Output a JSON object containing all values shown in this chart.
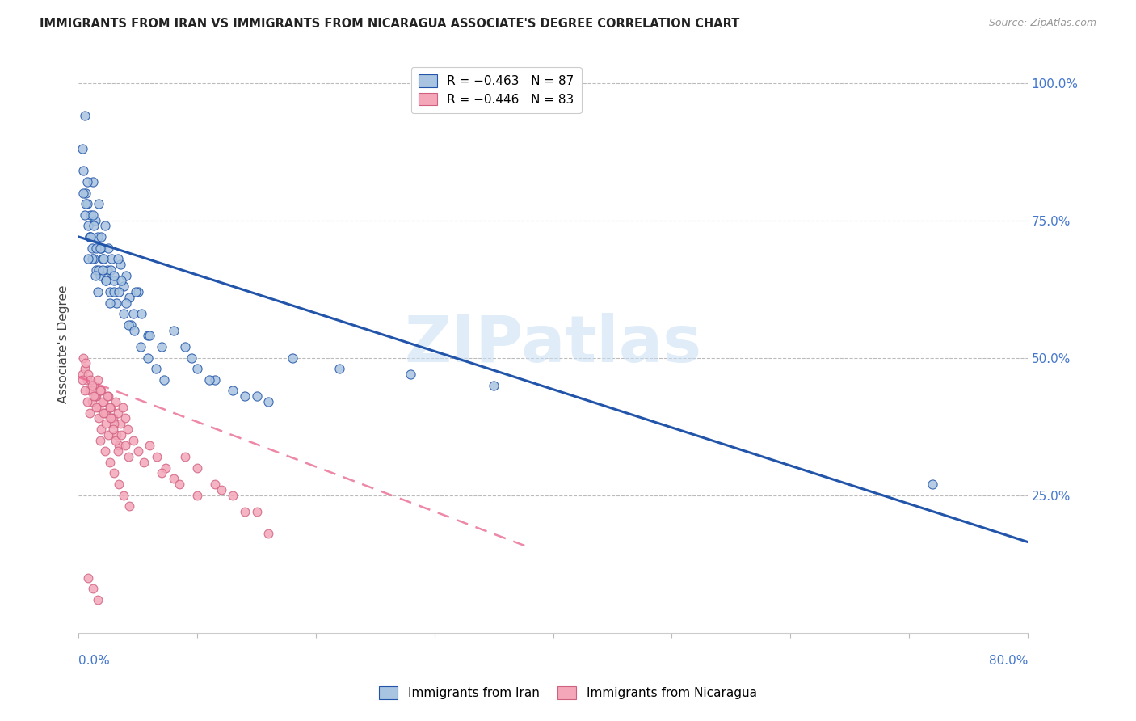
{
  "title": "IMMIGRANTS FROM IRAN VS IMMIGRANTS FROM NICARAGUA ASSOCIATE'S DEGREE CORRELATION CHART",
  "source": "Source: ZipAtlas.com",
  "ylabel": "Associate's Degree",
  "ytick_labels": [
    "100.0%",
    "75.0%",
    "50.0%",
    "25.0%"
  ],
  "ytick_values": [
    1.0,
    0.75,
    0.5,
    0.25
  ],
  "xlim": [
    0.0,
    0.8
  ],
  "ylim": [
    0.0,
    1.05
  ],
  "iran_color": "#a8c4e0",
  "nicaragua_color": "#f4a7b9",
  "iran_line_color": "#2255aa",
  "nicaragua_line_color": "#e8608a",
  "watermark_text": "ZIPatlas",
  "iran_R": "-0.463",
  "iran_N": "87",
  "nicaragua_R": "-0.446",
  "nicaragua_N": "83",
  "iran_line_x0": 0.0,
  "iran_line_x1": 0.8,
  "iran_line_y0": 0.72,
  "iran_line_y1": 0.165,
  "nicaragua_line_x0": 0.0,
  "nicaragua_line_x1": 0.38,
  "nicaragua_line_y0": 0.465,
  "nicaragua_line_y1": 0.155,
  "iran_scatter_x": [
    0.003,
    0.004,
    0.005,
    0.006,
    0.007,
    0.008,
    0.009,
    0.01,
    0.011,
    0.012,
    0.013,
    0.014,
    0.015,
    0.016,
    0.017,
    0.018,
    0.019,
    0.02,
    0.022,
    0.024,
    0.026,
    0.028,
    0.03,
    0.032,
    0.035,
    0.038,
    0.04,
    0.043,
    0.046,
    0.05,
    0.005,
    0.007,
    0.009,
    0.011,
    0.013,
    0.015,
    0.017,
    0.019,
    0.021,
    0.023,
    0.025,
    0.027,
    0.03,
    0.033,
    0.036,
    0.04,
    0.044,
    0.048,
    0.053,
    0.058,
    0.004,
    0.006,
    0.008,
    0.01,
    0.012,
    0.014,
    0.016,
    0.018,
    0.02,
    0.023,
    0.026,
    0.03,
    0.034,
    0.038,
    0.042,
    0.047,
    0.052,
    0.058,
    0.065,
    0.072,
    0.08,
    0.09,
    0.1,
    0.115,
    0.13,
    0.15,
    0.18,
    0.22,
    0.28,
    0.72,
    0.35,
    0.06,
    0.07,
    0.095,
    0.11,
    0.14,
    0.16
  ],
  "iran_scatter_y": [
    0.88,
    0.84,
    0.94,
    0.8,
    0.78,
    0.74,
    0.72,
    0.76,
    0.7,
    0.82,
    0.68,
    0.75,
    0.66,
    0.72,
    0.78,
    0.65,
    0.7,
    0.68,
    0.74,
    0.66,
    0.62,
    0.68,
    0.64,
    0.6,
    0.67,
    0.63,
    0.65,
    0.61,
    0.58,
    0.62,
    0.76,
    0.82,
    0.72,
    0.68,
    0.74,
    0.7,
    0.66,
    0.72,
    0.68,
    0.64,
    0.7,
    0.66,
    0.62,
    0.68,
    0.64,
    0.6,
    0.56,
    0.62,
    0.58,
    0.54,
    0.8,
    0.78,
    0.68,
    0.72,
    0.76,
    0.65,
    0.62,
    0.7,
    0.66,
    0.64,
    0.6,
    0.65,
    0.62,
    0.58,
    0.56,
    0.55,
    0.52,
    0.5,
    0.48,
    0.46,
    0.55,
    0.52,
    0.48,
    0.46,
    0.44,
    0.43,
    0.5,
    0.48,
    0.47,
    0.27,
    0.45,
    0.54,
    0.52,
    0.5,
    0.46,
    0.43,
    0.42
  ],
  "nicaragua_scatter_x": [
    0.003,
    0.005,
    0.007,
    0.009,
    0.011,
    0.013,
    0.015,
    0.017,
    0.019,
    0.021,
    0.023,
    0.025,
    0.027,
    0.029,
    0.031,
    0.033,
    0.035,
    0.037,
    0.039,
    0.041,
    0.004,
    0.006,
    0.008,
    0.01,
    0.012,
    0.014,
    0.016,
    0.018,
    0.02,
    0.022,
    0.024,
    0.026,
    0.028,
    0.03,
    0.032,
    0.034,
    0.003,
    0.005,
    0.007,
    0.009,
    0.011,
    0.013,
    0.015,
    0.017,
    0.019,
    0.021,
    0.023,
    0.025,
    0.027,
    0.029,
    0.031,
    0.033,
    0.036,
    0.039,
    0.042,
    0.046,
    0.05,
    0.055,
    0.06,
    0.066,
    0.073,
    0.08,
    0.09,
    0.1,
    0.115,
    0.13,
    0.15,
    0.018,
    0.022,
    0.026,
    0.03,
    0.034,
    0.038,
    0.043,
    0.12,
    0.14,
    0.16,
    0.07,
    0.085,
    0.1,
    0.008,
    0.012,
    0.016
  ],
  "nicaragua_scatter_y": [
    0.47,
    0.48,
    0.46,
    0.44,
    0.42,
    0.45,
    0.43,
    0.41,
    0.44,
    0.42,
    0.4,
    0.43,
    0.41,
    0.39,
    0.42,
    0.4,
    0.38,
    0.41,
    0.39,
    0.37,
    0.5,
    0.49,
    0.47,
    0.46,
    0.44,
    0.43,
    0.46,
    0.44,
    0.42,
    0.4,
    0.43,
    0.41,
    0.39,
    0.38,
    0.36,
    0.34,
    0.46,
    0.44,
    0.42,
    0.4,
    0.45,
    0.43,
    0.41,
    0.39,
    0.37,
    0.4,
    0.38,
    0.36,
    0.39,
    0.37,
    0.35,
    0.33,
    0.36,
    0.34,
    0.32,
    0.35,
    0.33,
    0.31,
    0.34,
    0.32,
    0.3,
    0.28,
    0.32,
    0.3,
    0.27,
    0.25,
    0.22,
    0.35,
    0.33,
    0.31,
    0.29,
    0.27,
    0.25,
    0.23,
    0.26,
    0.22,
    0.18,
    0.29,
    0.27,
    0.25,
    0.1,
    0.08,
    0.06
  ]
}
